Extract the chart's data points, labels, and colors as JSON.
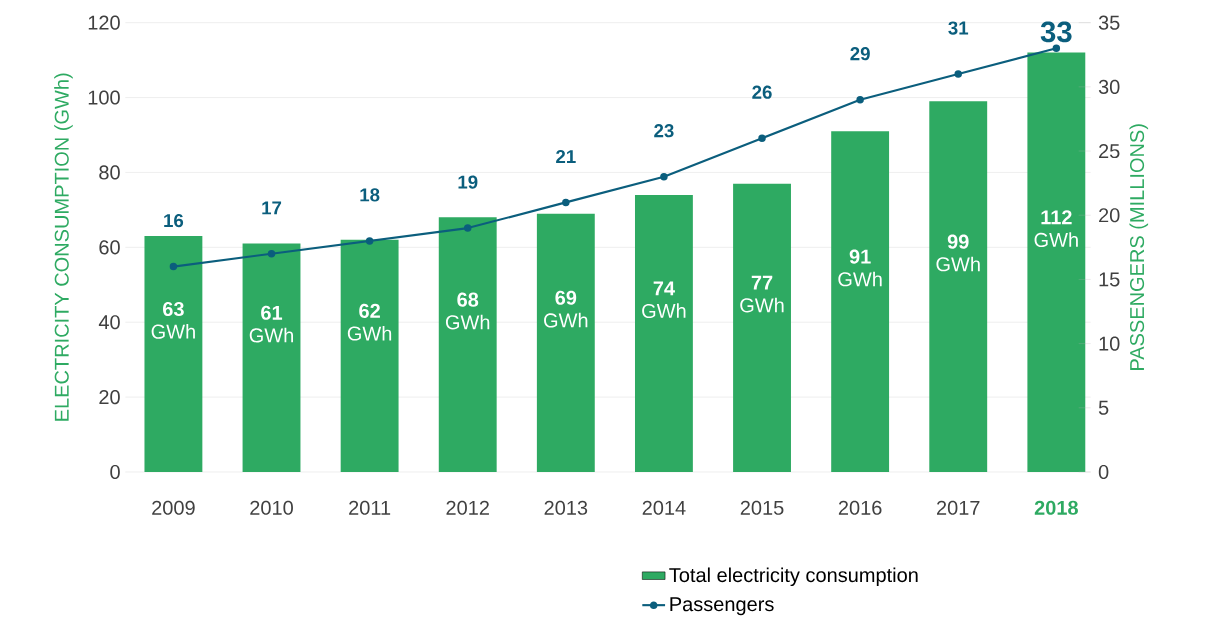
{
  "chart_data": {
    "type": "bar",
    "categories": [
      "2009",
      "2010",
      "2011",
      "2012",
      "2013",
      "2014",
      "2015",
      "2016",
      "2017",
      "2018"
    ],
    "series": [
      {
        "name": "Total electricity consumption",
        "color": "#2eaa62",
        "values": [
          63,
          61,
          62,
          68,
          69,
          74,
          77,
          91,
          99,
          112
        ],
        "value_labels": [
          "**63** GWh",
          "**61** GWh",
          "**62** GWh",
          "**68** GWh",
          "**69** GWh",
          "**74** GWh",
          "**77** GWh",
          "**91** GWh",
          "**99** GWh",
          "**112** GWh"
        ]
      },
      {
        "name": "Passengers",
        "type": "line",
        "axis": "y2",
        "color": "#0b5e7d",
        "marker": "circle",
        "line_style": "solid",
        "data_labels": true,
        "values": [
          16,
          17,
          18,
          19,
          21,
          23,
          26,
          29,
          31,
          33
        ]
      }
    ],
    "ylabel": "ELECTRICITY CONSUMPTION (GWh)",
    "y2label": "PASSENGERS (MILLIONS)",
    "ylim": [
      0,
      120
    ],
    "yticks": [
      0,
      20,
      40,
      60,
      80,
      100,
      120
    ],
    "y2lim": [
      0,
      35
    ],
    "y2ticks": [
      0,
      5,
      10,
      15,
      20,
      25,
      30,
      35
    ],
    "grid": "y",
    "legend": "bottom"
  }
}
